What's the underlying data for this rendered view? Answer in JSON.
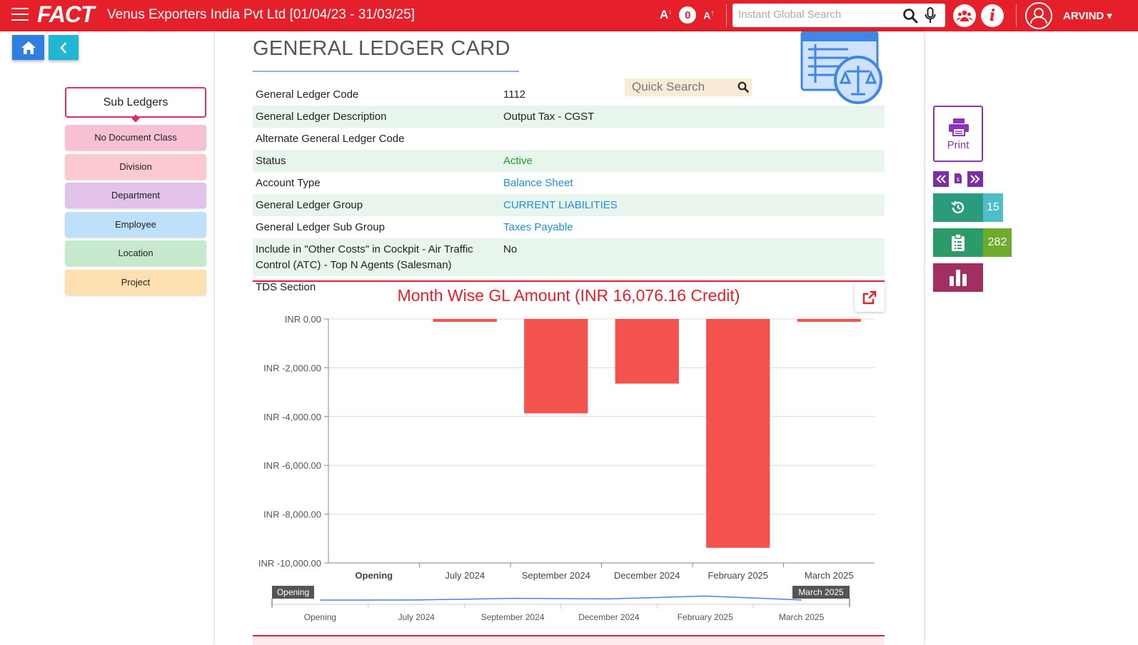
{
  "header": {
    "logo": "FACT",
    "company": "Venus Exporters India Pvt Ltd [01/04/23 - 31/03/25]",
    "font_decrease": "A",
    "font_level": "0",
    "font_increase": "A",
    "search_placeholder": "Instant Global Search",
    "username": "ARVIND"
  },
  "sidebar": {
    "title": "Sub Ledgers",
    "items": [
      {
        "label": "No Document Class",
        "color": "#f7c0d4"
      },
      {
        "label": "Division",
        "color": "#fbc9d0"
      },
      {
        "label": "Department",
        "color": "#e2c2e8"
      },
      {
        "label": "Employee",
        "color": "#bfe0fb"
      },
      {
        "label": "Location",
        "color": "#c6e8cc"
      },
      {
        "label": "Project",
        "color": "#fde0b0"
      }
    ]
  },
  "main": {
    "title": "GENERAL LEDGER CARD",
    "quick_search_placeholder": "Quick Search",
    "rows": [
      {
        "label": "General Ledger Code",
        "value": "1112",
        "style": ""
      },
      {
        "label": "General Ledger Description",
        "value": "Output Tax - CGST",
        "style": ""
      },
      {
        "label": "Alternate General Ledger Code",
        "value": "",
        "style": ""
      },
      {
        "label": "Status",
        "value": "Active",
        "style": "green"
      },
      {
        "label": "Account Type",
        "value": "Balance Sheet",
        "style": "blue"
      },
      {
        "label": "General Ledger Group",
        "value": "CURRENT LIABILITIES",
        "style": "blue"
      },
      {
        "label": "General Ledger Sub Group",
        "value": "Taxes Payable",
        "style": "blue"
      },
      {
        "label": "Include in \"Other Costs\" in Cockpit - Air Traffic Control (ATC) - Top N Agents (Salesman)",
        "value": "No",
        "style": ""
      },
      {
        "label": "TDS Section",
        "value": "",
        "style": ""
      }
    ]
  },
  "chart_data": {
    "type": "bar",
    "title": "Month Wise GL Amount (INR 16,076.16 Credit)",
    "categories": [
      "Opening",
      "July 2024",
      "September 2024",
      "December 2024",
      "February 2025",
      "March 2025"
    ],
    "values": [
      0,
      -120,
      -3870,
      -2650,
      -9380,
      -120
    ],
    "ylim": [
      -10000,
      0
    ],
    "yticks": [
      0,
      -2000,
      -4000,
      -6000,
      -8000,
      -10000
    ],
    "ytick_labels": [
      "INR 0.00",
      "INR -2,000.00",
      "INR -4,000.00",
      "INR -6,000.00",
      "INR -8,000.00",
      "INR -10,000.00"
    ],
    "bar_color": "#f4524d",
    "navigator": {
      "labels": [
        "Opening",
        "July 2024",
        "September 2024",
        "December 2024",
        "February 2025",
        "March 2025"
      ],
      "range_start": "Opening",
      "range_end": "March 2025"
    }
  },
  "right_panel": {
    "print_label": "Print",
    "history_count": "15",
    "docs_count": "282"
  }
}
